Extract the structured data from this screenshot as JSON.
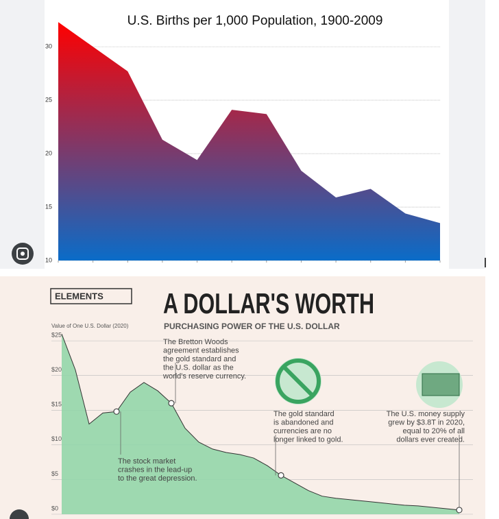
{
  "chart_data": [
    {
      "type": "area",
      "title": "U.S. Births per 1,000 Population, 1900-2009",
      "values": [
        32.3,
        30.0,
        27.7,
        21.3,
        19.4,
        24.1,
        23.7,
        18.4,
        15.9,
        16.7,
        14.4,
        13.5
      ],
      "ylim": [
        10,
        33.6
      ],
      "yticks": [
        10,
        15,
        20,
        25,
        30
      ],
      "grid": true,
      "color_top": "#ff0000",
      "color_bottom": "#0a6cc8"
    },
    {
      "type": "area",
      "brand": "ELEMENTS",
      "title": "A DOLLAR'S WORTH",
      "subtitle": "PURCHASING POWER OF THE U.S. DOLLAR",
      "ylabel": "Value of One U.S. Dollar (2020)",
      "values": [
        26.0,
        20.8,
        13.0,
        14.6,
        14.8,
        17.6,
        19.0,
        17.8,
        16.0,
        12.4,
        10.4,
        9.4,
        8.9,
        8.6,
        8.1,
        7.0,
        5.6,
        4.5,
        3.4,
        2.6,
        2.3,
        2.1,
        1.9,
        1.7,
        1.5,
        1.3,
        1.2,
        1.0,
        0.8,
        0.6
      ],
      "ylim": [
        0,
        26
      ],
      "yticks": [
        {
          "value": 0,
          "label": "$0"
        },
        {
          "value": 5,
          "label": "$5"
        },
        {
          "value": 10,
          "label": "$10"
        },
        {
          "value": 15,
          "label": "$15"
        },
        {
          "value": 20,
          "label": "$20"
        },
        {
          "value": 25,
          "label": "$25"
        }
      ],
      "grid": true,
      "color": "#93d6aa",
      "line_color": "#333333",
      "annotations": [
        [
          "The stock market",
          "crashes in the lead-up",
          "to the great depression."
        ],
        [
          "The Bretton Woods",
          "agreement establishes",
          "the gold standard and",
          "the U.S. dollar as the",
          "world's reserve currency."
        ],
        [
          "The gold standard",
          "is abandoned and",
          "currencies are no",
          "longer linked to gold."
        ],
        [
          "The U.S. money supply",
          "grew by $3.8T in 2020,",
          "equal to 20% of all",
          "dollars ever created."
        ]
      ]
    }
  ]
}
